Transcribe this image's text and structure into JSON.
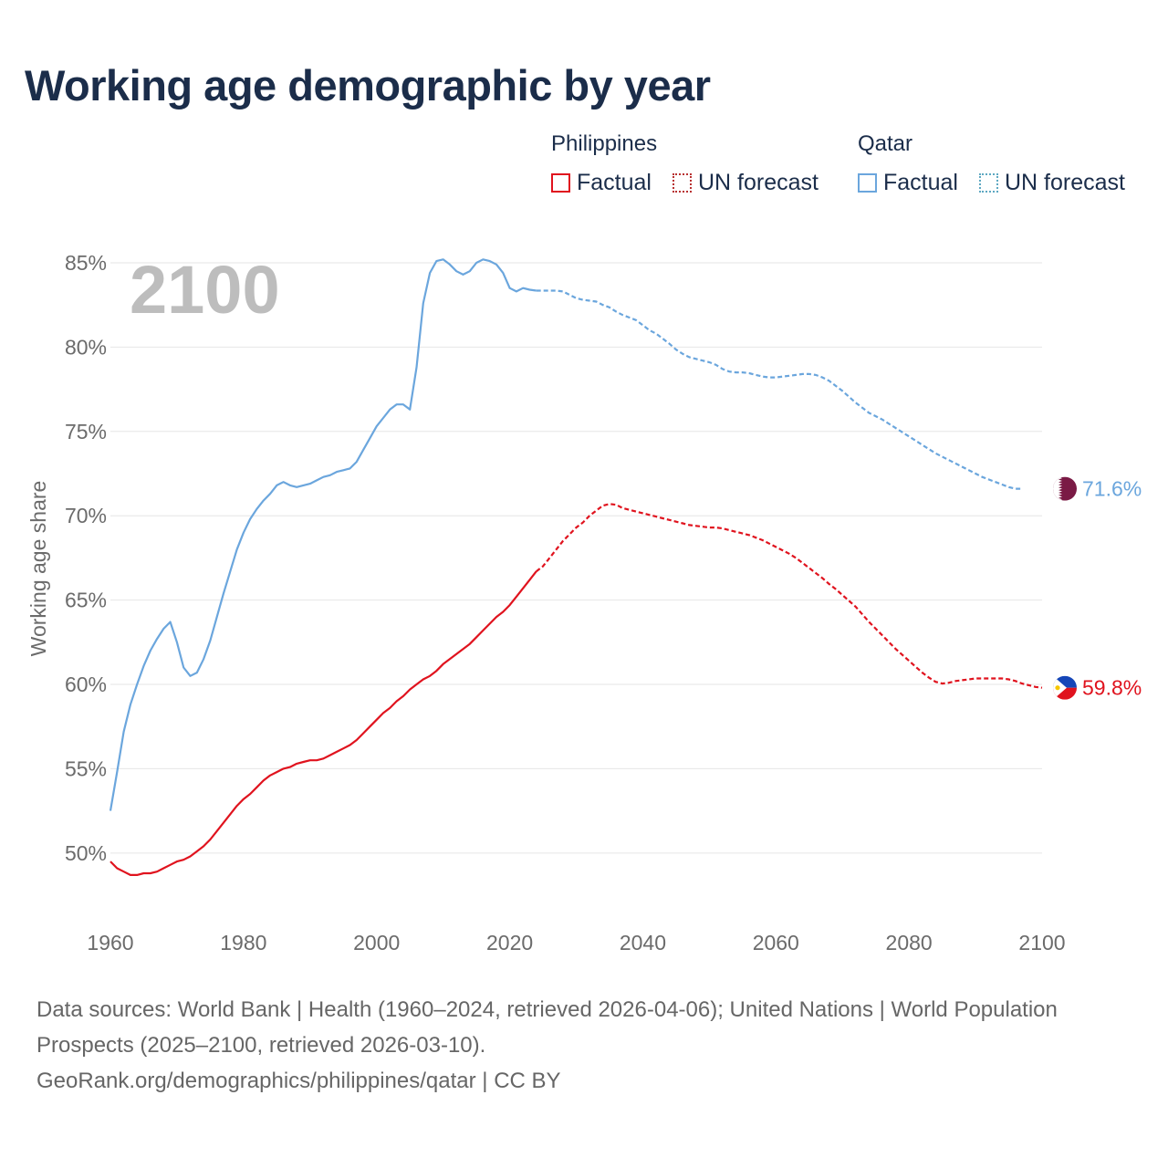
{
  "title": "Working age demographic by year",
  "legend": {
    "groups": [
      {
        "name": "Philippines",
        "factual": "Factual",
        "forecast": "UN forecast"
      },
      {
        "name": "Qatar",
        "factual": "Factual",
        "forecast": "UN forecast"
      }
    ]
  },
  "colors": {
    "philippines": "#e0131e",
    "qatar": "#6ba6dd",
    "grid": "#e6e6e6",
    "axis_text": "#6b6b6b",
    "year_watermark": "#bdbdbd",
    "qatar_flag": "#7a1a45",
    "ph_flag_blue": "#1546b8",
    "ph_flag_red": "#e0131e"
  },
  "chart_data": {
    "type": "line",
    "year_label": "2100",
    "ylabel": "Working age share",
    "xlim": [
      1960,
      2100
    ],
    "ylim": [
      45.5,
      87
    ],
    "x_ticks": [
      1960,
      1980,
      2000,
      2020,
      2040,
      2060,
      2080,
      2100
    ],
    "y_ticks": [
      50,
      55,
      60,
      65,
      70,
      75,
      80,
      85
    ],
    "y_tick_labels": [
      "50%",
      "55%",
      "60%",
      "65%",
      "70%",
      "75%",
      "80%",
      "85%"
    ],
    "factual_end_year": 2024,
    "series": [
      {
        "name": "Qatar",
        "color_key": "qatar",
        "end_label": "71.6%",
        "points": [
          [
            1960,
            52.5
          ],
          [
            1961,
            54.8
          ],
          [
            1962,
            57.2
          ],
          [
            1963,
            58.8
          ],
          [
            1964,
            60.0
          ],
          [
            1965,
            61.1
          ],
          [
            1966,
            62.0
          ],
          [
            1967,
            62.7
          ],
          [
            1968,
            63.3
          ],
          [
            1969,
            63.7
          ],
          [
            1970,
            62.5
          ],
          [
            1971,
            61.0
          ],
          [
            1972,
            60.5
          ],
          [
            1973,
            60.7
          ],
          [
            1974,
            61.5
          ],
          [
            1975,
            62.6
          ],
          [
            1976,
            64.0
          ],
          [
            1977,
            65.4
          ],
          [
            1978,
            66.7
          ],
          [
            1979,
            68.0
          ],
          [
            1980,
            69.0
          ],
          [
            1981,
            69.8
          ],
          [
            1982,
            70.4
          ],
          [
            1983,
            70.9
          ],
          [
            1984,
            71.3
          ],
          [
            1985,
            71.8
          ],
          [
            1986,
            72.0
          ],
          [
            1987,
            71.8
          ],
          [
            1988,
            71.7
          ],
          [
            1989,
            71.8
          ],
          [
            1990,
            71.9
          ],
          [
            1991,
            72.1
          ],
          [
            1992,
            72.3
          ],
          [
            1993,
            72.4
          ],
          [
            1994,
            72.6
          ],
          [
            1995,
            72.7
          ],
          [
            1996,
            72.8
          ],
          [
            1997,
            73.2
          ],
          [
            1998,
            73.9
          ],
          [
            1999,
            74.6
          ],
          [
            2000,
            75.3
          ],
          [
            2001,
            75.8
          ],
          [
            2002,
            76.3
          ],
          [
            2003,
            76.6
          ],
          [
            2004,
            76.6
          ],
          [
            2005,
            76.3
          ],
          [
            2006,
            78.8
          ],
          [
            2007,
            82.6
          ],
          [
            2008,
            84.4
          ],
          [
            2009,
            85.1
          ],
          [
            2010,
            85.2
          ],
          [
            2011,
            84.9
          ],
          [
            2012,
            84.5
          ],
          [
            2013,
            84.3
          ],
          [
            2014,
            84.5
          ],
          [
            2015,
            85.0
          ],
          [
            2016,
            85.2
          ],
          [
            2017,
            85.1
          ],
          [
            2018,
            84.9
          ],
          [
            2019,
            84.4
          ],
          [
            2020,
            83.5
          ],
          [
            2021,
            83.3
          ],
          [
            2022,
            83.5
          ],
          [
            2023,
            83.4
          ],
          [
            2024,
            83.35
          ],
          [
            2025,
            83.35
          ],
          [
            2026,
            83.35
          ],
          [
            2027,
            83.35
          ],
          [
            2028,
            83.3
          ],
          [
            2029,
            83.1
          ],
          [
            2030,
            82.9
          ],
          [
            2031,
            82.8
          ],
          [
            2032,
            82.75
          ],
          [
            2033,
            82.7
          ],
          [
            2034,
            82.5
          ],
          [
            2035,
            82.35
          ],
          [
            2036,
            82.1
          ],
          [
            2037,
            81.9
          ],
          [
            2038,
            81.75
          ],
          [
            2039,
            81.6
          ],
          [
            2040,
            81.3
          ],
          [
            2041,
            81.0
          ],
          [
            2042,
            80.8
          ],
          [
            2043,
            80.5
          ],
          [
            2044,
            80.2
          ],
          [
            2045,
            79.85
          ],
          [
            2046,
            79.6
          ],
          [
            2047,
            79.4
          ],
          [
            2048,
            79.3
          ],
          [
            2049,
            79.2
          ],
          [
            2050,
            79.1
          ],
          [
            2051,
            78.95
          ],
          [
            2052,
            78.7
          ],
          [
            2053,
            78.55
          ],
          [
            2054,
            78.5
          ],
          [
            2055,
            78.5
          ],
          [
            2056,
            78.45
          ],
          [
            2057,
            78.35
          ],
          [
            2058,
            78.25
          ],
          [
            2059,
            78.2
          ],
          [
            2060,
            78.2
          ],
          [
            2061,
            78.25
          ],
          [
            2062,
            78.3
          ],
          [
            2063,
            78.35
          ],
          [
            2064,
            78.4
          ],
          [
            2065,
            78.4
          ],
          [
            2066,
            78.35
          ],
          [
            2067,
            78.2
          ],
          [
            2068,
            78.0
          ],
          [
            2069,
            77.7
          ],
          [
            2070,
            77.4
          ],
          [
            2071,
            77.05
          ],
          [
            2072,
            76.7
          ],
          [
            2073,
            76.4
          ],
          [
            2074,
            76.1
          ],
          [
            2075,
            75.9
          ],
          [
            2076,
            75.7
          ],
          [
            2077,
            75.45
          ],
          [
            2078,
            75.2
          ],
          [
            2079,
            74.95
          ],
          [
            2080,
            74.7
          ],
          [
            2081,
            74.45
          ],
          [
            2082,
            74.2
          ],
          [
            2083,
            73.95
          ],
          [
            2084,
            73.7
          ],
          [
            2085,
            73.5
          ],
          [
            2086,
            73.3
          ],
          [
            2087,
            73.1
          ],
          [
            2088,
            72.9
          ],
          [
            2089,
            72.7
          ],
          [
            2090,
            72.5
          ],
          [
            2091,
            72.3
          ],
          [
            2092,
            72.15
          ],
          [
            2093,
            72.0
          ],
          [
            2094,
            71.85
          ],
          [
            2095,
            71.7
          ],
          [
            2096,
            71.6
          ],
          [
            2097,
            71.6
          ]
        ]
      },
      {
        "name": "Philippines",
        "color_key": "philippines",
        "end_label": "59.8%",
        "points": [
          [
            1960,
            49.5
          ],
          [
            1961,
            49.1
          ],
          [
            1962,
            48.9
          ],
          [
            1963,
            48.7
          ],
          [
            1964,
            48.7
          ],
          [
            1965,
            48.8
          ],
          [
            1966,
            48.8
          ],
          [
            1967,
            48.9
          ],
          [
            1968,
            49.1
          ],
          [
            1969,
            49.3
          ],
          [
            1970,
            49.5
          ],
          [
            1971,
            49.6
          ],
          [
            1972,
            49.8
          ],
          [
            1973,
            50.1
          ],
          [
            1974,
            50.4
          ],
          [
            1975,
            50.8
          ],
          [
            1976,
            51.3
          ],
          [
            1977,
            51.8
          ],
          [
            1978,
            52.3
          ],
          [
            1979,
            52.8
          ],
          [
            1980,
            53.2
          ],
          [
            1981,
            53.5
          ],
          [
            1982,
            53.9
          ],
          [
            1983,
            54.3
          ],
          [
            1984,
            54.6
          ],
          [
            1985,
            54.8
          ],
          [
            1986,
            55.0
          ],
          [
            1987,
            55.1
          ],
          [
            1988,
            55.3
          ],
          [
            1989,
            55.4
          ],
          [
            1990,
            55.5
          ],
          [
            1991,
            55.5
          ],
          [
            1992,
            55.6
          ],
          [
            1993,
            55.8
          ],
          [
            1994,
            56.0
          ],
          [
            1995,
            56.2
          ],
          [
            1996,
            56.4
          ],
          [
            1997,
            56.7
          ],
          [
            1998,
            57.1
          ],
          [
            1999,
            57.5
          ],
          [
            2000,
            57.9
          ],
          [
            2001,
            58.3
          ],
          [
            2002,
            58.6
          ],
          [
            2003,
            59.0
          ],
          [
            2004,
            59.3
          ],
          [
            2005,
            59.7
          ],
          [
            2006,
            60.0
          ],
          [
            2007,
            60.3
          ],
          [
            2008,
            60.5
          ],
          [
            2009,
            60.8
          ],
          [
            2010,
            61.2
          ],
          [
            2011,
            61.5
          ],
          [
            2012,
            61.8
          ],
          [
            2013,
            62.1
          ],
          [
            2014,
            62.4
          ],
          [
            2015,
            62.8
          ],
          [
            2016,
            63.2
          ],
          [
            2017,
            63.6
          ],
          [
            2018,
            64.0
          ],
          [
            2019,
            64.3
          ],
          [
            2020,
            64.7
          ],
          [
            2021,
            65.2
          ],
          [
            2022,
            65.7
          ],
          [
            2023,
            66.2
          ],
          [
            2024,
            66.7
          ],
          [
            2025,
            67.0
          ],
          [
            2026,
            67.5
          ],
          [
            2027,
            68.0
          ],
          [
            2028,
            68.5
          ],
          [
            2029,
            68.9
          ],
          [
            2030,
            69.3
          ],
          [
            2031,
            69.6
          ],
          [
            2032,
            70.0
          ],
          [
            2033,
            70.3
          ],
          [
            2034,
            70.6
          ],
          [
            2035,
            70.7
          ],
          [
            2036,
            70.65
          ],
          [
            2037,
            70.45
          ],
          [
            2038,
            70.35
          ],
          [
            2039,
            70.25
          ],
          [
            2040,
            70.15
          ],
          [
            2041,
            70.05
          ],
          [
            2042,
            69.95
          ],
          [
            2043,
            69.85
          ],
          [
            2044,
            69.75
          ],
          [
            2045,
            69.65
          ],
          [
            2046,
            69.55
          ],
          [
            2047,
            69.45
          ],
          [
            2048,
            69.4
          ],
          [
            2049,
            69.35
          ],
          [
            2050,
            69.3
          ],
          [
            2051,
            69.3
          ],
          [
            2052,
            69.25
          ],
          [
            2053,
            69.15
          ],
          [
            2054,
            69.05
          ],
          [
            2055,
            68.95
          ],
          [
            2056,
            68.85
          ],
          [
            2057,
            68.7
          ],
          [
            2058,
            68.55
          ],
          [
            2059,
            68.35
          ],
          [
            2060,
            68.15
          ],
          [
            2061,
            67.95
          ],
          [
            2062,
            67.75
          ],
          [
            2063,
            67.5
          ],
          [
            2064,
            67.2
          ],
          [
            2065,
            66.9
          ],
          [
            2066,
            66.6
          ],
          [
            2067,
            66.3
          ],
          [
            2068,
            65.95
          ],
          [
            2069,
            65.65
          ],
          [
            2070,
            65.3
          ],
          [
            2071,
            64.95
          ],
          [
            2072,
            64.6
          ],
          [
            2073,
            64.15
          ],
          [
            2074,
            63.7
          ],
          [
            2075,
            63.3
          ],
          [
            2076,
            62.9
          ],
          [
            2077,
            62.5
          ],
          [
            2078,
            62.1
          ],
          [
            2079,
            61.75
          ],
          [
            2080,
            61.4
          ],
          [
            2081,
            61.05
          ],
          [
            2082,
            60.7
          ],
          [
            2083,
            60.4
          ],
          [
            2084,
            60.15
          ],
          [
            2085,
            60.05
          ],
          [
            2086,
            60.1
          ],
          [
            2087,
            60.2
          ],
          [
            2088,
            60.25
          ],
          [
            2089,
            60.3
          ],
          [
            2090,
            60.35
          ],
          [
            2091,
            60.35
          ],
          [
            2092,
            60.35
          ],
          [
            2093,
            60.35
          ],
          [
            2094,
            60.35
          ],
          [
            2095,
            60.3
          ],
          [
            2096,
            60.2
          ],
          [
            2097,
            60.05
          ],
          [
            2098,
            59.95
          ],
          [
            2099,
            59.85
          ],
          [
            2100,
            59.8
          ]
        ]
      }
    ]
  },
  "footer": {
    "sources": "Data sources: World Bank | Health (1960–2024, retrieved 2026-04-06); United Nations | World Population Prospects (2025–2100, retrieved 2026-03-10).",
    "credit": "GeoRank.org/demographics/philippines/qatar | CC BY"
  }
}
